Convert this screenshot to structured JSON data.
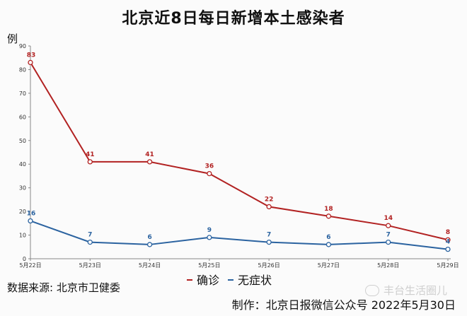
{
  "title": "北京近8日每日新增本土感染者",
  "unit_label": "例",
  "source": "数据来源: 北京市卫健委",
  "credit": "制作：北京日报微信公众号 2022年5月30日",
  "watermark": "丰台生活圈儿",
  "chart_data": {
    "type": "line",
    "categories": [
      "5月22日",
      "5月23日",
      "5月24日",
      "5月25日",
      "5月26日",
      "5月27日",
      "5月28日",
      "5月29日"
    ],
    "series": [
      {
        "name": "确诊",
        "values": [
          83,
          41,
          41,
          36,
          22,
          18,
          14,
          8
        ],
        "color": "#b22222"
      },
      {
        "name": "无症状",
        "values": [
          16,
          7,
          6,
          9,
          7,
          6,
          7,
          4
        ],
        "color": "#2b63a0"
      }
    ],
    "ylim": [
      0,
      90
    ],
    "yticks": [
      0,
      10,
      20,
      30,
      40,
      50,
      60,
      70,
      80,
      90
    ],
    "grid": false,
    "legend": "bottom-center"
  }
}
